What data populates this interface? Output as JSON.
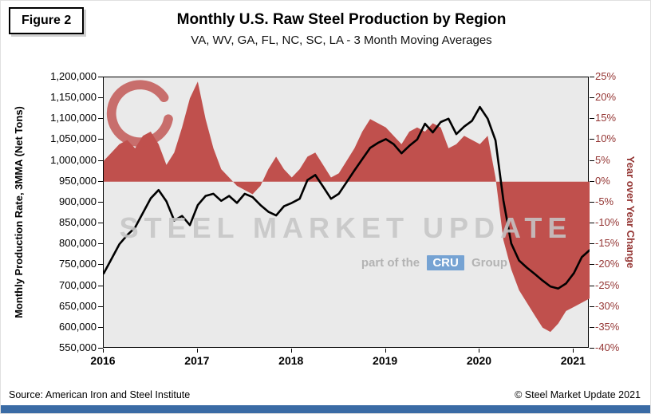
{
  "figure_label": "Figure 2",
  "watermark": {
    "line1": "STEEL MARKET UPDATE",
    "part_text": "part of the",
    "cru": "CRU",
    "group_text": "Group"
  },
  "footer": {
    "source": "Source: American Iron and Steel Institute",
    "copyright": "© Steel Market Update 2021"
  },
  "chart_data": {
    "type": "line",
    "title": "Monthly U.S. Raw Steel Production by Region",
    "subtitle": "VA, WV, GA, FL, NC, SC, LA - 3 Month Moving Averages",
    "ylabel_left": "Monthly Production Rate, 3MMA (Net Tons)",
    "ylabel_right": "Year over Year Change",
    "ylim_left": [
      550000,
      1200000
    ],
    "ylim_right": [
      -40,
      25
    ],
    "grid": false,
    "legend": "none",
    "left_ticks": [
      "1,200,000",
      "1,150,000",
      "1,100,000",
      "1,050,000",
      "1,000,000",
      "950,000",
      "900,000",
      "850,000",
      "800,000",
      "750,000",
      "700,000",
      "650,000",
      "600,000",
      "550,000"
    ],
    "right_ticks": [
      "25%",
      "20%",
      "15%",
      "10%",
      "5%",
      "0%",
      "-5%",
      "-10%",
      "-15%",
      "-20%",
      "-25%",
      "-30%",
      "-35%",
      "-40%"
    ],
    "x_ticks": [
      "2016",
      "2017",
      "2018",
      "2019",
      "2020",
      "2021"
    ],
    "colors": {
      "production_line": "#000000",
      "yoy_area": "#C0504D",
      "right_axis_text": "#953735",
      "plot_background": "#EAEAEA",
      "accent_bar": "#3A6BA5",
      "cru_box": "#76A3D3"
    },
    "months": [
      "2016-01",
      "2016-02",
      "2016-03",
      "2016-04",
      "2016-05",
      "2016-06",
      "2016-07",
      "2016-08",
      "2016-09",
      "2016-10",
      "2016-11",
      "2016-12",
      "2017-01",
      "2017-02",
      "2017-03",
      "2017-04",
      "2017-05",
      "2017-06",
      "2017-07",
      "2017-08",
      "2017-09",
      "2017-10",
      "2017-11",
      "2017-12",
      "2018-01",
      "2018-02",
      "2018-03",
      "2018-04",
      "2018-05",
      "2018-06",
      "2018-07",
      "2018-08",
      "2018-09",
      "2018-10",
      "2018-11",
      "2018-12",
      "2019-01",
      "2019-02",
      "2019-03",
      "2019-04",
      "2019-05",
      "2019-06",
      "2019-07",
      "2019-08",
      "2019-09",
      "2019-10",
      "2019-11",
      "2019-12",
      "2020-01",
      "2020-02",
      "2020-03",
      "2020-04",
      "2020-05",
      "2020-06",
      "2020-07",
      "2020-08",
      "2020-09",
      "2020-10",
      "2020-11",
      "2020-12",
      "2021-01",
      "2021-02",
      "2021-03"
    ],
    "series": [
      {
        "name": "Monthly Production Rate, 3MMA (Net Tons)",
        "axis": "left",
        "style": "line",
        "values": [
          730000,
          765000,
          800000,
          822000,
          840000,
          875000,
          910000,
          930000,
          903000,
          857000,
          868000,
          846000,
          894000,
          916000,
          921000,
          904000,
          916000,
          899000,
          921000,
          913000,
          894000,
          878000,
          869000,
          891000,
          899000,
          909000,
          954000,
          966000,
          938000,
          909000,
          921000,
          949000,
          977000,
          1004000,
          1031000,
          1043000,
          1052000,
          1040000,
          1018000,
          1036000,
          1051000,
          1089000,
          1068000,
          1093000,
          1101000,
          1064000,
          1082000,
          1096000,
          1129000,
          1101000,
          1049000,
          905000,
          802000,
          761000,
          744000,
          729000,
          713000,
          699000,
          694000,
          706000,
          731000,
          769000,
          786000
        ]
      },
      {
        "name": "Year over Year Change (%)",
        "axis": "right",
        "style": "area",
        "values": [
          5,
          7,
          9,
          10,
          8,
          11,
          12,
          9,
          4,
          7,
          13,
          20,
          24,
          15,
          8,
          3,
          1,
          -1,
          -2,
          -3,
          -1,
          3,
          6,
          3,
          1,
          3,
          6,
          7,
          4,
          1,
          2,
          5,
          8,
          12,
          15,
          14,
          13,
          11,
          9,
          12,
          13,
          12,
          14,
          13,
          8,
          9,
          11,
          10,
          9,
          11,
          1,
          -14,
          -21,
          -26,
          -29,
          -32,
          -35,
          -36,
          -34,
          -31,
          -30,
          -29,
          -28
        ]
      }
    ]
  }
}
